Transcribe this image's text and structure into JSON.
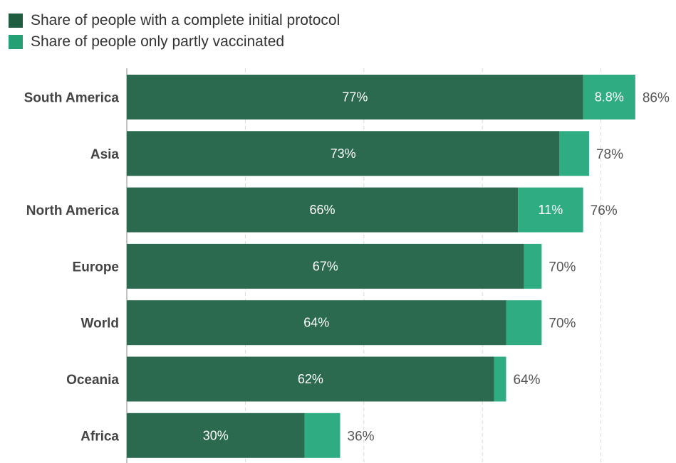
{
  "legend": [
    {
      "label": "Share of people with a complete initial protocol",
      "color": "#1f5c40"
    },
    {
      "label": "Share of people only partly vaccinated",
      "color": "#25a075"
    }
  ],
  "colors": {
    "complete_bar": "#2b6a4f",
    "partial_bar": "#30ac82",
    "grid": "#d8d8d8",
    "axis": "#888888"
  },
  "chart_data": {
    "type": "bar",
    "orientation": "horizontal",
    "stacked": true,
    "categories": [
      "South America",
      "Asia",
      "North America",
      "Europe",
      "World",
      "Oceania",
      "Africa"
    ],
    "series": [
      {
        "name": "Share of people with a complete initial protocol",
        "values": [
          77,
          73,
          66,
          67,
          64,
          62,
          30
        ],
        "labels": [
          "77%",
          "73%",
          "66%",
          "67%",
          "64%",
          "62%",
          "30%"
        ]
      },
      {
        "name": "Share of people only partly vaccinated",
        "values": [
          8.8,
          5,
          11,
          3,
          6,
          2,
          6
        ],
        "labels": [
          "8.8%",
          "",
          "11%",
          "",
          "",
          "",
          ""
        ]
      }
    ],
    "totals": [
      "86%",
      "78%",
      "76%",
      "70%",
      "70%",
      "64%",
      "36%"
    ],
    "xlim": [
      0,
      100
    ],
    "grid": true,
    "legend_position": "top-left"
  }
}
